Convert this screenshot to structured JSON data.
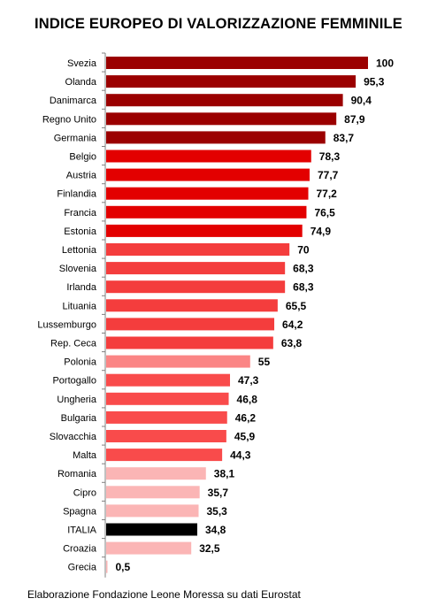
{
  "title": "INDICE EUROPEO DI VALORIZZAZIONE FEMMINILE",
  "footer": "Elaborazione Fondazione Leone Moressa su dati Eurostat",
  "chart_data": {
    "type": "bar",
    "orientation": "horizontal",
    "title": "INDICE EUROPEO DI VALORIZZAZIONE FEMMINILE",
    "xlim": [
      0,
      100
    ],
    "grid": false,
    "categories": [
      "Svezia",
      "Olanda",
      "Danimarca",
      "Regno Unito",
      "Germania",
      "Belgio",
      "Austria",
      "Finlandia",
      "Francia",
      "Estonia",
      "Lettonia",
      "Slovenia",
      "Irlanda",
      "Lituania",
      "Lussemburgo",
      "Rep. Ceca",
      "Polonia",
      "Portogallo",
      "Ungheria",
      "Bulgaria",
      "Slovacchia",
      "Malta",
      "Romania",
      "Cipro",
      "Spagna",
      "ITALIA",
      "Croazia",
      "Grecia"
    ],
    "values": [
      100,
      95.3,
      90.4,
      87.9,
      83.7,
      78.3,
      77.7,
      77.2,
      76.5,
      74.9,
      70,
      68.3,
      68.3,
      65.5,
      64.2,
      63.8,
      55,
      47.3,
      46.8,
      46.2,
      45.9,
      44.3,
      38.1,
      35.7,
      35.3,
      34.8,
      32.5,
      0.5
    ],
    "labels": [
      "100",
      "95,3",
      "90,4",
      "87,9",
      "83,7",
      "78,3",
      "77,7",
      "77,2",
      "76,5",
      "74,9",
      "70",
      "68,3",
      "68,3",
      "65,5",
      "64,2",
      "63,8",
      "55",
      "47,3",
      "46,8",
      "46,2",
      "45,9",
      "44,3",
      "38,1",
      "35,7",
      "35,3",
      "34,8",
      "32,5",
      "0,5"
    ],
    "colors": [
      "#9b0000",
      "#9b0000",
      "#9b0000",
      "#9b0000",
      "#9b0000",
      "#e30000",
      "#e30000",
      "#e30000",
      "#e30000",
      "#e30000",
      "#f43d3d",
      "#f43d3d",
      "#f43d3d",
      "#f43d3d",
      "#f43d3d",
      "#f43d3d",
      "#fb8585",
      "#f94b4b",
      "#f94b4b",
      "#f94b4b",
      "#f94b4b",
      "#f94b4b",
      "#fbb5b5",
      "#fbb5b5",
      "#fbb5b5",
      "#000000",
      "#fbb5b5",
      "#fbb5b5"
    ]
  }
}
